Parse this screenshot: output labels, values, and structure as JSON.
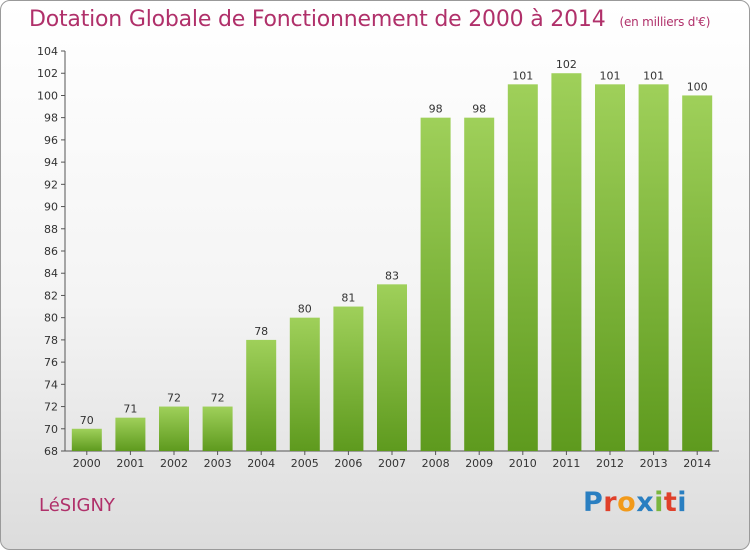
{
  "header": {
    "title": "Dotation Globale de Fonctionnement de 2000 à 2014",
    "subtitle": "(en milliers d'€)"
  },
  "footer": {
    "commune": "LéSIGNY",
    "logo": "Proxiti",
    "logo_colors": [
      "#2a7fc1",
      "#e0402a",
      "#f29a1a",
      "#2a7fc1",
      "#7ab63e",
      "#e0402a",
      "#2a7fc1"
    ]
  },
  "chart_data": {
    "type": "bar",
    "title": "Dotation Globale de Fonctionnement de 2000 à 2014",
    "subtitle": "(en milliers d'€)",
    "categories": [
      "2000",
      "2001",
      "2002",
      "2003",
      "2004",
      "2005",
      "2006",
      "2007",
      "2008",
      "2009",
      "2010",
      "2011",
      "2012",
      "2013",
      "2014"
    ],
    "values": [
      70,
      71,
      72,
      72,
      78,
      80,
      81,
      83,
      98,
      98,
      101,
      102,
      101,
      101,
      100
    ],
    "ylim": [
      68,
      104
    ],
    "yticks": [
      68,
      70,
      72,
      74,
      76,
      78,
      80,
      82,
      84,
      86,
      88,
      90,
      92,
      94,
      96,
      98,
      100,
      102,
      104
    ],
    "grid": false,
    "bar_color": "#7ab63e",
    "xlabel": "",
    "ylabel": ""
  }
}
